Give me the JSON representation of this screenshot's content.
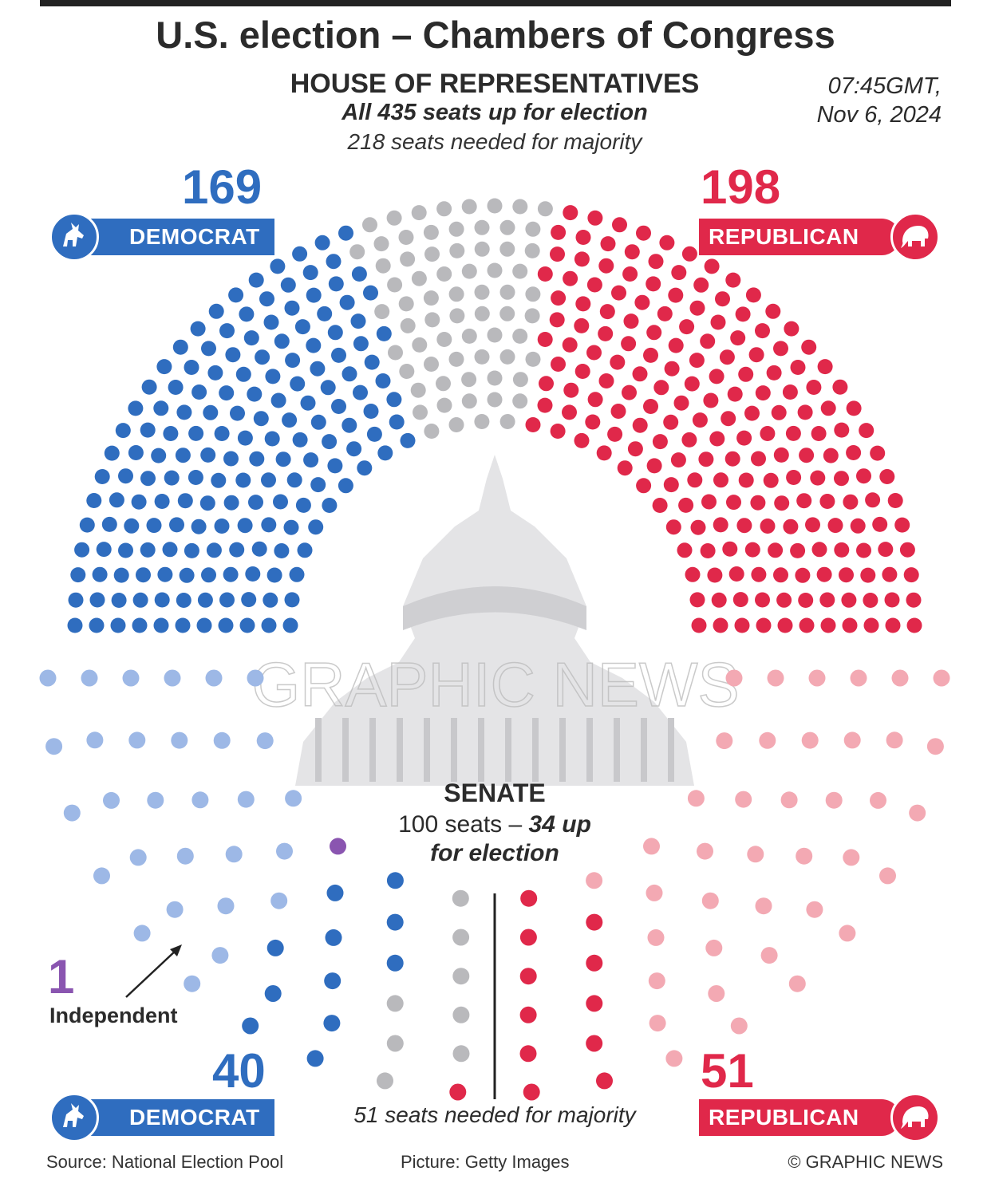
{
  "title": "U.S. election – Chambers of Congress",
  "timestamp": {
    "line1": "07:45GMT,",
    "line2": "Nov 6, 2024"
  },
  "colors": {
    "democrat": "#2f6dbf",
    "republican": "#e0284a",
    "undecided": "#b9b9bc",
    "democrat_not_up": "#9db8e6",
    "republican_not_up": "#f3a9b3",
    "independent": "#8a55b0"
  },
  "house": {
    "heading": "HOUSE OF REPRESENTATIVES",
    "subheading": "All 435 seats up for election",
    "majority_note": "218 seats needed for majority"
  },
  "senate": {
    "heading": "SENATE",
    "seats_text": "100 seats –",
    "up_text": "34 up",
    "for_election_text": "for election",
    "majority_note": "51 seats needed for majority",
    "independent_label": "Independent"
  },
  "labels": {
    "democrat": "DEMOCRAT",
    "republican": "REPUBLICAN"
  },
  "footer": {
    "source": "Source: National Election Pool",
    "picture": "Picture: Getty Images",
    "credit": "© GRAPHIC NEWS"
  },
  "watermark": "GRAPHIC NEWS",
  "chart_data": [
    {
      "type": "parliament",
      "chamber": "House of Representatives",
      "total_seats": 435,
      "majority": 218,
      "series": [
        {
          "name": "DEMOCRAT",
          "value": 169
        },
        {
          "name": "",
          "value": 68
        },
        {
          "name": "REPUBLICAN",
          "value": 198
        }
      ]
    },
    {
      "type": "parliament",
      "chamber": "Senate",
      "total_seats": 100,
      "up_for_election": 34,
      "majority": 51,
      "series": [
        {
          "name": "DEMOCRAT",
          "value": 40,
          "up_for_election": 11
        },
        {
          "name": "Independent",
          "value": 1
        },
        {
          "name": "",
          "value": 8
        },
        {
          "name": "REPUBLICAN",
          "value": 51,
          "up_for_election": 12
        }
      ]
    }
  ]
}
